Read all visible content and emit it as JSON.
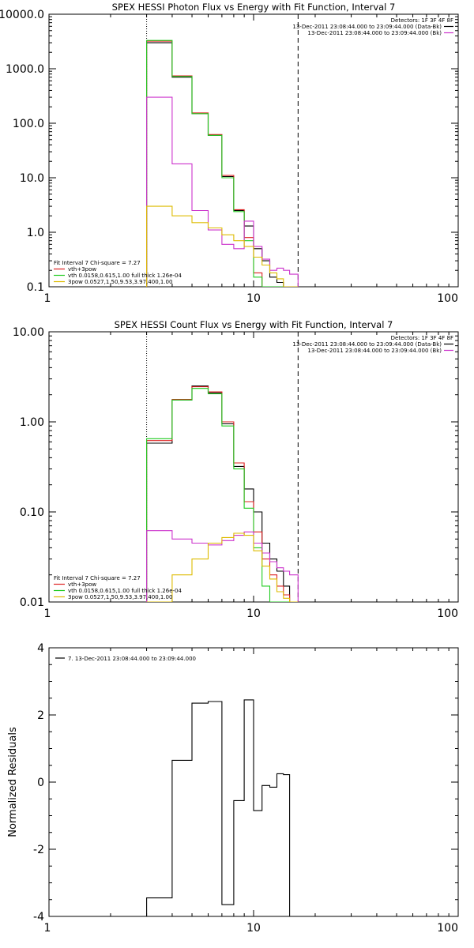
{
  "chart_data": [
    {
      "type": "line",
      "title": "SPEX HESSI Photon Flux vs Energy with Fit Function, Interval 7",
      "xscale": "log",
      "yscale": "log",
      "xlim": [
        1,
        100
      ],
      "ylim": [
        0.1,
        10000
      ],
      "xticks": [
        1,
        10,
        100
      ],
      "xticklabels": [
        "1",
        "10",
        "100"
      ],
      "yticks": [
        0.1,
        1,
        10,
        100,
        1000,
        10000
      ],
      "yticklabels": [
        "0.1",
        "1.0",
        "10.0",
        "100.0",
        "1000.0",
        "10000.0"
      ],
      "xlabel": "",
      "ylabel": "",
      "vlines": [
        {
          "x": 3.0,
          "style": "dotted"
        },
        {
          "x": 16.5,
          "style": "dashed"
        }
      ],
      "legend_top": {
        "placement": "top-right",
        "title": "Detectors: 1F 3F 4F 8F",
        "entries": [
          {
            "label": "13-Dec-2011 23:08:44.000 to 23:09:44.000 (Data-Bk)",
            "color": "#000000"
          },
          {
            "label": "13-Dec-2011 23:08:44.000 to 23:09:44.000 (Bk)",
            "color": "#cc33cc"
          }
        ]
      },
      "legend_bottom": {
        "placement": "bottom-left",
        "title": "Fit Interval 7   Chi-square = 7.27",
        "entries": [
          {
            "label": "vth+3pow",
            "color": "#dd2222"
          },
          {
            "label": "vth 0.0158,0.615,1.00   full thick 1.26e-04",
            "color": "#22cc22"
          },
          {
            "label": "3pow 0.0527,1.50,9.53,3.97,400,1.00",
            "color": "#ddbb00"
          }
        ]
      },
      "bin_edges": [
        3.0,
        4.0,
        5.0,
        6.0,
        7.0,
        8.0,
        9.0,
        10.0,
        11.0,
        12.0,
        13.0,
        14.0,
        15.0,
        16.5
      ],
      "series": [
        {
          "color": "#000000",
          "values": [
            3000,
            700,
            150,
            60,
            10.5,
            2.5,
            1.3,
            0.5,
            0.3,
            0.15,
            0.12,
            0.1,
            0.1
          ]
        },
        {
          "color": "#dd2222",
          "values": [
            3200,
            740,
            155,
            62,
            11,
            2.6,
            0.8,
            0.18,
            0.1,
            0.1,
            0.1,
            0.1,
            0.1
          ]
        },
        {
          "color": "#22cc22",
          "values": [
            3300,
            720,
            150,
            60,
            10,
            2.4,
            0.7,
            0.15,
            0.1,
            0.1,
            0.1,
            0.1,
            0.1
          ]
        },
        {
          "color": "#cc33cc",
          "values": [
            300,
            18,
            2.5,
            1.1,
            0.6,
            0.5,
            1.6,
            0.55,
            0.32,
            0.2,
            0.22,
            0.2,
            0.17
          ]
        },
        {
          "color": "#ddbb00",
          "values": [
            3.0,
            2.0,
            1.5,
            1.2,
            0.9,
            0.7,
            0.55,
            0.35,
            0.25,
            0.18,
            0.14,
            0.1,
            0.1
          ]
        }
      ]
    },
    {
      "type": "line",
      "title": "SPEX HESSI Count Flux vs Energy with Fit Function, Interval 7",
      "xscale": "log",
      "yscale": "log",
      "xlim": [
        1,
        100
      ],
      "ylim": [
        0.01,
        10
      ],
      "xticks": [
        1,
        10,
        100
      ],
      "xticklabels": [
        "1",
        "10",
        "100"
      ],
      "yticks": [
        0.01,
        0.1,
        1,
        10
      ],
      "yticklabels": [
        "0.01",
        "0.10",
        "1.00",
        "10.00"
      ],
      "xlabel": "",
      "ylabel": "",
      "vlines": [
        {
          "x": 3.0,
          "style": "dotted"
        },
        {
          "x": 16.5,
          "style": "dashed"
        }
      ],
      "legend_top": {
        "placement": "top-right",
        "title": "Detectors: 1F 3F 4F 8F",
        "entries": [
          {
            "label": "13-Dec-2011 23:08:44.000 to 23:09:44.000 (Data-Bk)",
            "color": "#000000"
          },
          {
            "label": "13-Dec-2011 23:08:44.000 to 23:09:44.000 (Bk)",
            "color": "#cc33cc"
          }
        ]
      },
      "legend_bottom": {
        "placement": "bottom-left",
        "title": "Fit Interval 7   Chi-square = 7.27",
        "entries": [
          {
            "label": "vth+3pow",
            "color": "#dd2222"
          },
          {
            "label": "vth 0.0158,0.615,1.00   full thick 1.26e-04",
            "color": "#22cc22"
          },
          {
            "label": "3pow 0.0527,1.50,9.53,3.97,400,1.00",
            "color": "#ddbb00"
          }
        ]
      },
      "bin_edges": [
        3.0,
        4.0,
        5.0,
        6.0,
        7.0,
        8.0,
        9.0,
        10.0,
        11.0,
        12.0,
        13.0,
        14.0,
        15.0,
        16.5
      ],
      "series": [
        {
          "color": "#000000",
          "values": [
            0.58,
            1.75,
            2.5,
            2.1,
            0.95,
            0.32,
            0.18,
            0.1,
            0.045,
            0.03,
            0.022,
            0.015,
            0.01
          ]
        },
        {
          "color": "#dd2222",
          "values": [
            0.62,
            1.78,
            2.45,
            2.15,
            1.0,
            0.35,
            0.13,
            0.06,
            0.03,
            0.02,
            0.015,
            0.012,
            0.01
          ]
        },
        {
          "color": "#22cc22",
          "values": [
            0.65,
            1.75,
            2.35,
            2.05,
            0.9,
            0.3,
            0.11,
            0.04,
            0.015,
            0.01,
            0.01,
            0.01,
            0.01
          ]
        },
        {
          "color": "#cc33cc",
          "values": [
            0.062,
            0.05,
            0.045,
            0.043,
            0.048,
            0.055,
            0.06,
            0.045,
            0.035,
            0.028,
            0.024,
            0.022,
            0.02
          ]
        },
        {
          "color": "#ddbb00",
          "values": [
            0.01,
            0.02,
            0.03,
            0.045,
            0.052,
            0.058,
            0.055,
            0.037,
            0.025,
            0.018,
            0.013,
            0.011,
            0.01
          ]
        }
      ]
    },
    {
      "type": "line",
      "title": "",
      "xscale": "log",
      "yscale": "linear",
      "xlim": [
        1,
        100
      ],
      "ylim": [
        -4,
        4
      ],
      "xticks": [
        1,
        10,
        100
      ],
      "xticklabels": [
        "1",
        "10",
        "100"
      ],
      "yticks": [
        -4,
        -2,
        0,
        2,
        4
      ],
      "yticklabels": [
        "-4",
        "-2",
        "0",
        "2",
        "4"
      ],
      "xlabel": "",
      "ylabel": "Normalized Residuals",
      "legend": {
        "placement": "top-left",
        "entries": [
          {
            "label": "7. 13-Dec-2011 23:08:44.000 to 23:09:44.000",
            "color": "#000000"
          }
        ]
      },
      "bin_edges": [
        3.0,
        4.0,
        5.0,
        6.0,
        7.0,
        8.0,
        9.0,
        10.0,
        11.0,
        12.0,
        13.0,
        14.0,
        15.0,
        16.5
      ],
      "series": [
        {
          "color": "#000000",
          "values": [
            -3.45,
            0.65,
            2.35,
            2.4,
            -3.65,
            -0.55,
            2.45,
            -0.85,
            -0.1,
            -0.15,
            0.25,
            0.22,
            -4.0
          ]
        }
      ]
    }
  ]
}
